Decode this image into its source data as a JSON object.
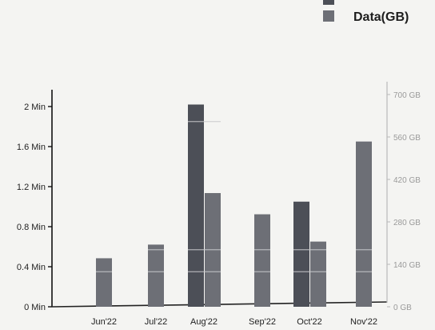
{
  "chart_data": {
    "type": "bar",
    "categories": [
      "Jun'22",
      "Jul'22",
      "Aug'22",
      "Sep'22",
      "Oct'22",
      "Nov'22"
    ],
    "series": [
      {
        "name": "",
        "axis": "left",
        "unit": "Min",
        "color": "#4c4f57",
        "values": [
          null,
          null,
          2.02,
          null,
          1.05,
          null
        ]
      },
      {
        "name": "Data(GB)",
        "axis": "right",
        "unit": "GB",
        "color": "#6d6f76",
        "values": [
          160,
          205,
          375,
          305,
          215,
          545
        ]
      }
    ],
    "y_left": {
      "range": [
        0,
        2
      ],
      "ticks": [
        "0 Min",
        "0.4 Min",
        "0.8 Min",
        "1.2 Min",
        "1.6 Min",
        "2 Min"
      ],
      "tick_values": [
        0,
        0.4,
        0.8,
        1.2,
        1.6,
        2
      ]
    },
    "y_right": {
      "range": [
        0,
        700
      ],
      "ticks": [
        "0 GB",
        "140 GB",
        "280 GB",
        "420 GB",
        "560 GB",
        "700 GB"
      ],
      "tick_values": [
        0,
        140,
        280,
        420,
        560,
        700
      ]
    },
    "legend": {
      "placement": "top-right",
      "entries": [
        "",
        "Data(GB)"
      ]
    },
    "grid": false
  }
}
